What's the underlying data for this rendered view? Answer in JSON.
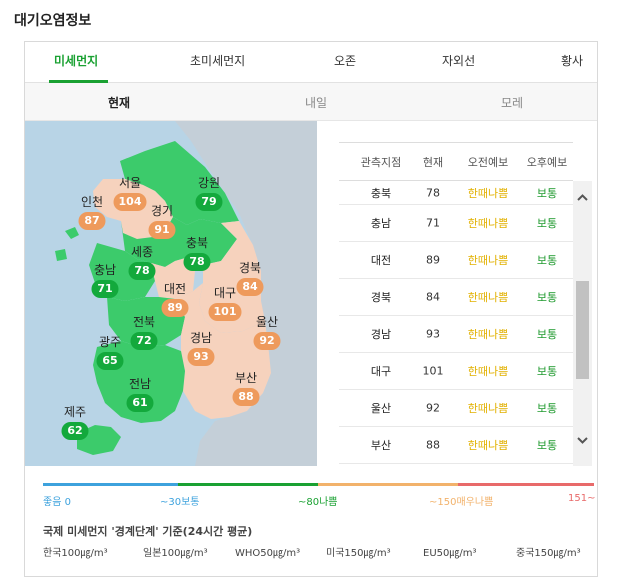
{
  "title": "대기오염정보",
  "tabs": [
    "미세먼지",
    "초미세먼지",
    "오존",
    "자외선",
    "황사"
  ],
  "subtabs": [
    "현재",
    "내일",
    "모레"
  ],
  "regions": [
    {
      "name": "서울",
      "value": "104",
      "level": "bad"
    },
    {
      "name": "강원",
      "value": "79",
      "level": "good"
    },
    {
      "name": "인천",
      "value": "87",
      "level": "bad"
    },
    {
      "name": "경기",
      "value": "91",
      "level": "bad"
    },
    {
      "name": "세종",
      "value": "78",
      "level": "good"
    },
    {
      "name": "충북",
      "value": "78",
      "level": "good"
    },
    {
      "name": "경북",
      "value": "84",
      "level": "bad"
    },
    {
      "name": "충남",
      "value": "71",
      "level": "good"
    },
    {
      "name": "대전",
      "value": "89",
      "level": "bad"
    },
    {
      "name": "대구",
      "value": "101",
      "level": "bad"
    },
    {
      "name": "전북",
      "value": "72",
      "level": "good"
    },
    {
      "name": "울산",
      "value": "92",
      "level": "bad"
    },
    {
      "name": "광주",
      "value": "65",
      "level": "good"
    },
    {
      "name": "경남",
      "value": "93",
      "level": "bad"
    },
    {
      "name": "부산",
      "value": "88",
      "level": "bad"
    },
    {
      "name": "전남",
      "value": "61",
      "level": "good"
    },
    {
      "name": "제주",
      "value": "62",
      "level": "good"
    }
  ],
  "table": {
    "headers": [
      "관측지점",
      "현재",
      "오전예보",
      "오후예보"
    ],
    "rows": [
      [
        "충북",
        "78",
        "한때나쁨",
        "보통"
      ],
      [
        "충남",
        "71",
        "한때나쁨",
        "보통"
      ],
      [
        "대전",
        "89",
        "한때나쁨",
        "보통"
      ],
      [
        "경북",
        "84",
        "한때나쁨",
        "보통"
      ],
      [
        "경남",
        "93",
        "한때나쁨",
        "보통"
      ],
      [
        "대구",
        "101",
        "한때나쁨",
        "보통"
      ],
      [
        "울산",
        "92",
        "한때나쁨",
        "보통"
      ],
      [
        "부산",
        "88",
        "한때나쁨",
        "보통"
      ]
    ]
  },
  "legend": {
    "good": "좋음 0",
    "normal": "~30보통",
    "bad": "~80나쁨",
    "very_bad": "~150매우나쁨",
    "max": "151~"
  },
  "standard": {
    "title": "국제 미세먼지 '경계단계' 기준(24시간 평균)",
    "items": [
      "한국100㎍/m³",
      "일본100㎍/m³",
      "WHO50㎍/m³",
      "미국150㎍/m³",
      "EU50㎍/m³",
      "중국150㎍/m³"
    ]
  },
  "colors": {
    "accent": "#1aa132",
    "good": "#13a93c",
    "bad": "#ee9a5c",
    "table_bad": "#e2b100",
    "table_normal": "#1f9a2e",
    "legend_good": "#3da2dd",
    "legend_normal": "#1aa132",
    "legend_bad": "#f2b26b",
    "legend_very_bad": "#e86a6a",
    "sea": "#b8d4e6"
  }
}
